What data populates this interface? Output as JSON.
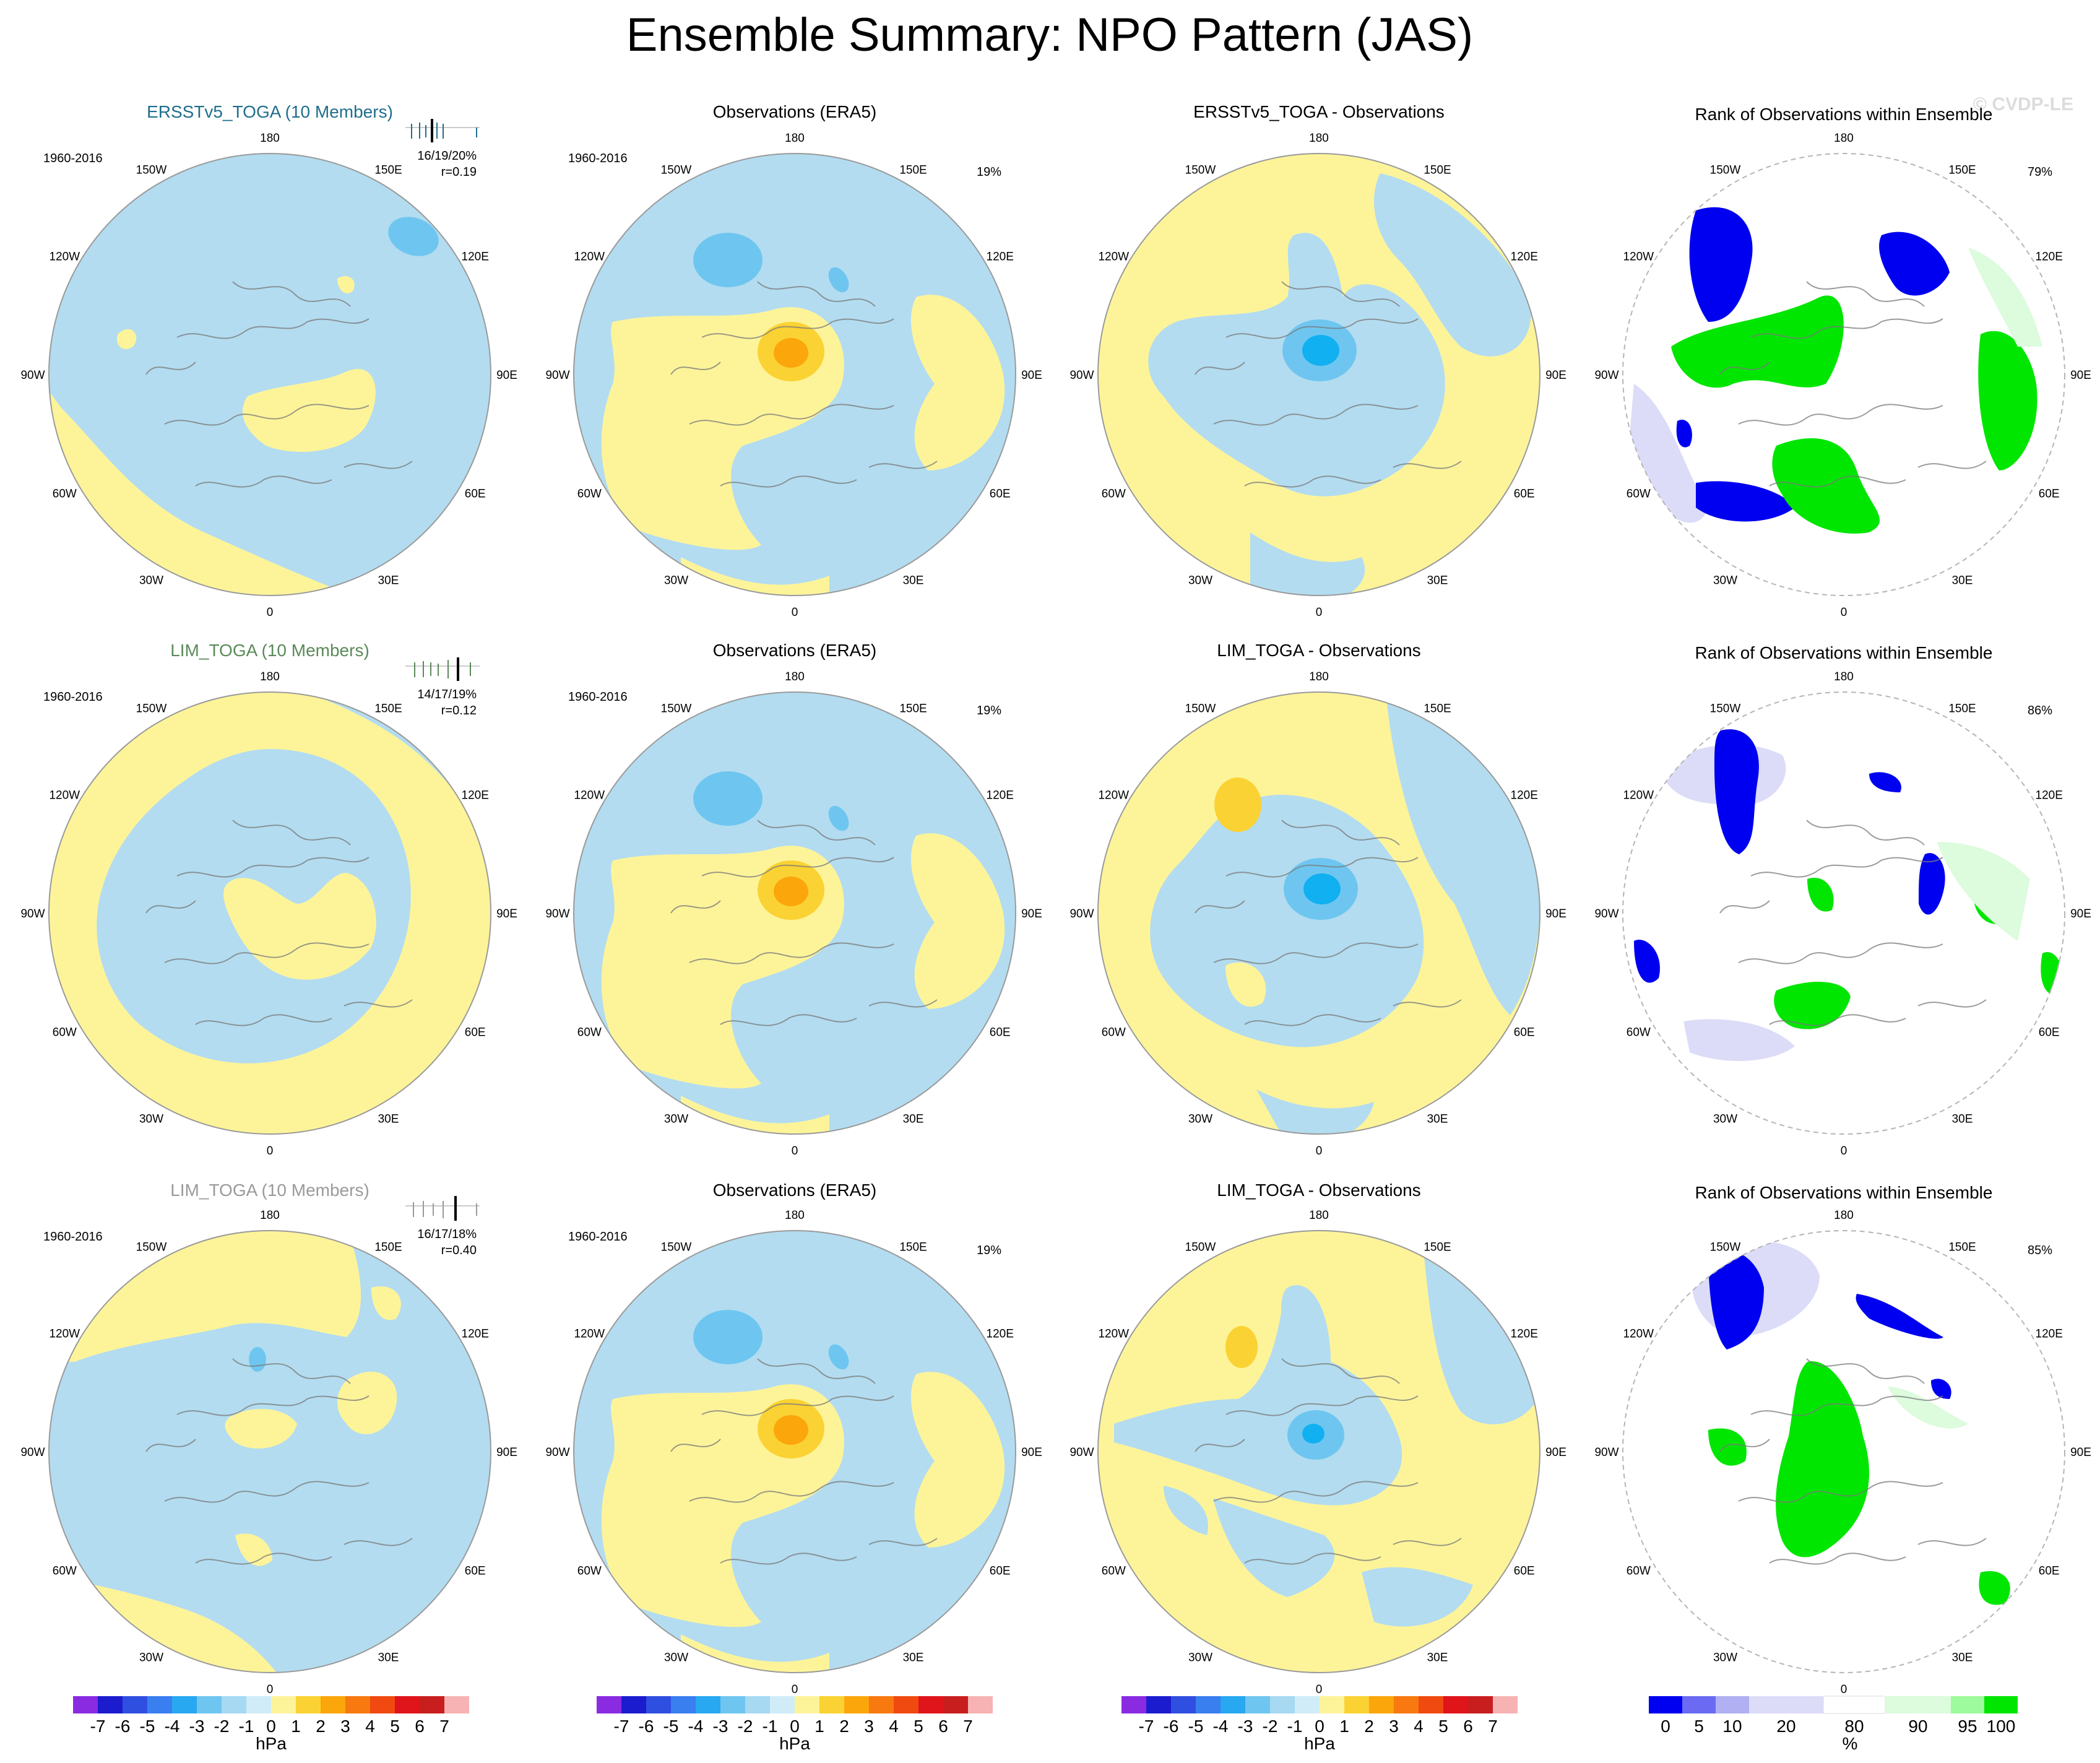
{
  "title": "Ensemble Summary: NPO Pattern (JAS)",
  "watermark": "© CVDP-LE",
  "longitude_labels": [
    "180",
    "150E",
    "120E",
    "90E",
    "60E",
    "30E",
    "0",
    "30W",
    "60W",
    "90W",
    "120W",
    "150W"
  ],
  "colors": {
    "ocean_neutral": "#b3dcf0",
    "positive_weak": "#fdf49a",
    "blue_1": "#6ec6f0",
    "blue_2": "#11b0f0",
    "orange_1": "#fbd233",
    "orange_2": "#fba60b",
    "rank_blue": "#0000f0",
    "rank_lavender": "#dcdcf8",
    "rank_green": "#00e600",
    "rank_palegreen": "#ddfbdd",
    "row_titles": [
      "#1f6e8c",
      "#5a8a58",
      "#9a9a9a"
    ]
  },
  "chart_data": [
    {
      "type": "map",
      "panels": [
        {
          "id": "r1c1",
          "title": "ERSSTv5_TOGA (10 Members)",
          "period": "1960-2016",
          "stats": "16/19/20%",
          "corr": "r=0.19"
        },
        {
          "id": "r1c2",
          "title": "Observations (ERA5)",
          "period": "1960-2016",
          "stats": "19%"
        },
        {
          "id": "r1c3",
          "title": "ERSSTv5_TOGA - Observations"
        },
        {
          "id": "r1c4",
          "title": "Rank of Observations within Ensemble",
          "stats": "79%"
        },
        {
          "id": "r2c1",
          "title": "LIM_TOGA (10 Members)",
          "period": "1960-2016",
          "stats": "14/17/19%",
          "corr": "r=0.12"
        },
        {
          "id": "r2c2",
          "title": "Observations (ERA5)",
          "period": "1960-2016",
          "stats": "19%"
        },
        {
          "id": "r2c3",
          "title": "LIM_TOGA - Observations"
        },
        {
          "id": "r2c4",
          "title": "Rank of Observations within Ensemble",
          "stats": "86%"
        },
        {
          "id": "r3c1",
          "title": "LIM_TOGA (10 Members)",
          "period": "1960-2016",
          "stats": "16/17/18%",
          "corr": "r=0.40"
        },
        {
          "id": "r3c2",
          "title": "Observations (ERA5)",
          "period": "1960-2016",
          "stats": "19%"
        },
        {
          "id": "r3c3",
          "title": "LIM_TOGA - Observations"
        },
        {
          "id": "r3c4",
          "title": "Rank of Observations within Ensemble",
          "stats": "85%"
        }
      ]
    },
    {
      "type": "colorbar",
      "units": "hPa",
      "labels": [
        "-7",
        "-6",
        "-5",
        "-4",
        "-3",
        "-2",
        "-1",
        "0",
        "1",
        "2",
        "3",
        "4",
        "5",
        "6",
        "7"
      ],
      "colors": [
        "#8a2be2",
        "#1c1ccf",
        "#2f4fe0",
        "#3a7ff0",
        "#28a8f0",
        "#6ec6f0",
        "#a7d9f2",
        "#d0ecf8",
        "#fdf49a",
        "#fbd233",
        "#fba60b",
        "#f7790f",
        "#f04a10",
        "#e0141b",
        "#c81e1e",
        "#f7b3b3"
      ]
    },
    {
      "type": "colorbar",
      "units": "%",
      "labels": [
        "0",
        "5",
        "10",
        "20",
        "80",
        "90",
        "95",
        "100"
      ],
      "colors": [
        "#0000f0",
        "#6a6af2",
        "#b0b0f2",
        "#dcdcf8",
        "#ffffff",
        "#ddfbdd",
        "#9dfb9d",
        "#00e600"
      ]
    }
  ]
}
